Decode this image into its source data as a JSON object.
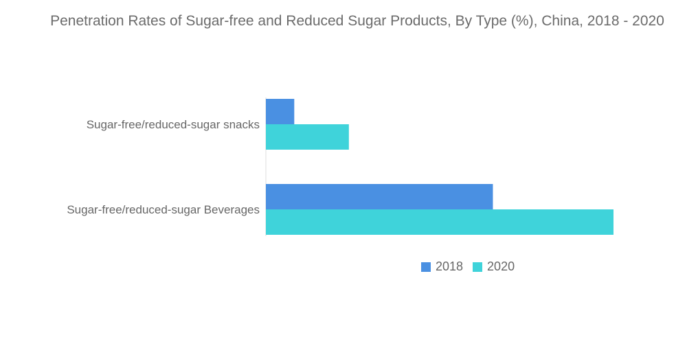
{
  "chart_data": {
    "type": "bar",
    "orientation": "horizontal",
    "title": "Penetration Rates of Sugar-free and Reduced Sugar Products, By Type (%), China, 2018 - 2020",
    "categories": [
      "Sugar-free/reduced-sugar snacks",
      "Sugar-free/reduced-sugar Beverages"
    ],
    "series": [
      {
        "name": "2018",
        "color": "#4a90e2",
        "values": [
          4,
          32
        ]
      },
      {
        "name": "2020",
        "color": "#3fd3da",
        "values": [
          11.7,
          49
        ]
      }
    ],
    "xlabel": "",
    "ylabel": "",
    "xlim": [
      0,
      49
    ],
    "grid": false,
    "legend_position": "bottom"
  }
}
